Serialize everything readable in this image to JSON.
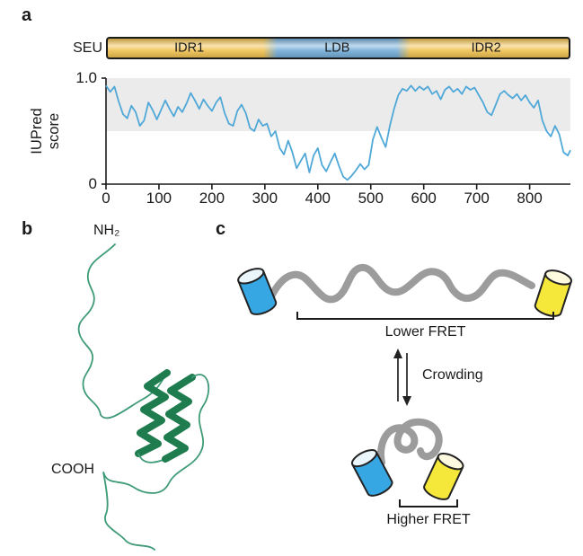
{
  "figure": {
    "panel_a_label": "a",
    "panel_b_label": "b",
    "panel_c_label": "c"
  },
  "panel_a": {
    "protein_label": "SEU",
    "domains": [
      {
        "label": "IDR1",
        "color": "#f0c150",
        "start": 0,
        "end": 310
      },
      {
        "label": "LDB",
        "color": "#74add9",
        "start": 310,
        "end": 563
      },
      {
        "label": "IDR2",
        "color": "#f0c150",
        "start": 563,
        "end": 877
      }
    ]
  },
  "chart_data": {
    "type": "line",
    "title": "",
    "xlabel": "",
    "ylabel": "IUPred score",
    "xlim": [
      0,
      877
    ],
    "ylim": [
      0,
      1.0
    ],
    "x_ticks": [
      0,
      100,
      200,
      300,
      400,
      500,
      600,
      700,
      800
    ],
    "y_tick_labels": [
      "1.0",
      "0"
    ],
    "grid": false,
    "legend": "none",
    "shaded_region": {
      "from": 0.5,
      "to": 1.0,
      "color": "#ebebeb"
    },
    "line_color": "#4fa8d8",
    "series": [
      {
        "name": "IUPred score",
        "x": [
          0,
          8,
          16,
          24,
          32,
          40,
          48,
          56,
          64,
          72,
          80,
          88,
          96,
          104,
          112,
          120,
          128,
          136,
          144,
          152,
          160,
          168,
          176,
          184,
          192,
          200,
          208,
          216,
          224,
          232,
          240,
          248,
          256,
          264,
          272,
          280,
          288,
          296,
          304,
          312,
          320,
          328,
          336,
          344,
          352,
          360,
          368,
          376,
          384,
          392,
          400,
          408,
          416,
          424,
          432,
          440,
          448,
          456,
          464,
          472,
          480,
          488,
          496,
          504,
          512,
          520,
          528,
          536,
          544,
          552,
          560,
          568,
          576,
          584,
          592,
          600,
          608,
          616,
          624,
          632,
          640,
          648,
          656,
          664,
          672,
          680,
          688,
          696,
          704,
          712,
          720,
          728,
          736,
          744,
          752,
          760,
          768,
          776,
          784,
          792,
          800,
          808,
          816,
          824,
          832,
          840,
          848,
          856,
          864,
          872,
          877
        ],
        "y": [
          0.93,
          0.87,
          0.92,
          0.78,
          0.66,
          0.62,
          0.74,
          0.68,
          0.55,
          0.6,
          0.77,
          0.7,
          0.61,
          0.7,
          0.79,
          0.71,
          0.64,
          0.73,
          0.68,
          0.76,
          0.86,
          0.79,
          0.71,
          0.8,
          0.74,
          0.69,
          0.77,
          0.82,
          0.67,
          0.57,
          0.55,
          0.69,
          0.75,
          0.67,
          0.53,
          0.5,
          0.61,
          0.55,
          0.57,
          0.45,
          0.5,
          0.34,
          0.28,
          0.41,
          0.3,
          0.15,
          0.22,
          0.29,
          0.11,
          0.27,
          0.34,
          0.18,
          0.12,
          0.21,
          0.29,
          0.17,
          0.07,
          0.04,
          0.08,
          0.13,
          0.19,
          0.14,
          0.18,
          0.42,
          0.54,
          0.44,
          0.35,
          0.55,
          0.71,
          0.84,
          0.9,
          0.88,
          0.93,
          0.88,
          0.92,
          0.89,
          0.92,
          0.85,
          0.88,
          0.8,
          0.89,
          0.92,
          0.87,
          0.9,
          0.85,
          0.92,
          0.89,
          0.91,
          0.84,
          0.77,
          0.68,
          0.65,
          0.75,
          0.85,
          0.88,
          0.84,
          0.81,
          0.85,
          0.79,
          0.84,
          0.77,
          0.72,
          0.79,
          0.6,
          0.5,
          0.45,
          0.55,
          0.47,
          0.3,
          0.27,
          0.32
        ]
      }
    ]
  },
  "panel_b": {
    "n_terminus": "NH₂",
    "c_terminus": "COOH",
    "chain_color": "#3f9b77",
    "helix_color": "#1e7c4e"
  },
  "panel_c": {
    "top_state_label": "Lower FRET",
    "transition_label": "Crowding",
    "bottom_state_label": "Higher FRET",
    "donor_color": "#36a7e2",
    "acceptor_color": "#f6e83a",
    "linker_color": "#9c9c9c"
  }
}
